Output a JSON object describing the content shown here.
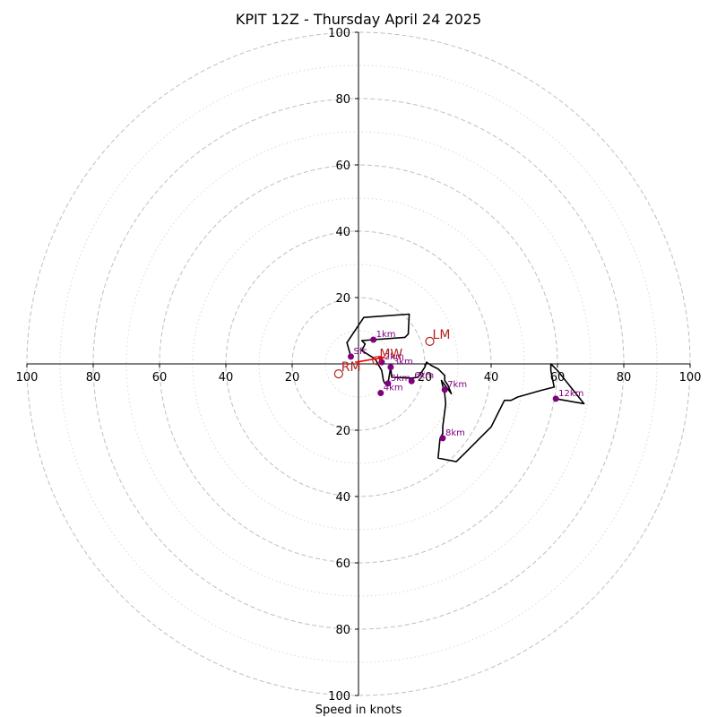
{
  "chart_data": {
    "type": "hodograph",
    "title": "KPIT 12Z - Thursday April 24 2025",
    "xlabel": "Speed in knots",
    "ylabel": "",
    "xlim": [
      -100,
      100
    ],
    "ylim": [
      -100,
      100
    ],
    "x_ticks": [
      {
        "value": -100,
        "label": "100"
      },
      {
        "value": -80,
        "label": "80"
      },
      {
        "value": -60,
        "label": "60"
      },
      {
        "value": -40,
        "label": "40"
      },
      {
        "value": -20,
        "label": "20"
      },
      {
        "value": 20,
        "label": "20"
      },
      {
        "value": 40,
        "label": "40"
      },
      {
        "value": 60,
        "label": "60"
      },
      {
        "value": 80,
        "label": "80"
      },
      {
        "value": 100,
        "label": "100"
      }
    ],
    "y_ticks": [
      {
        "value": 100,
        "label": "100"
      },
      {
        "value": 80,
        "label": "80"
      },
      {
        "value": 60,
        "label": "60"
      },
      {
        "value": 40,
        "label": "40"
      },
      {
        "value": 20,
        "label": "20"
      },
      {
        "value": -20,
        "label": "20"
      },
      {
        "value": -40,
        "label": "40"
      },
      {
        "value": -60,
        "label": "60"
      },
      {
        "value": -80,
        "label": "80"
      },
      {
        "value": -100,
        "label": "100"
      }
    ],
    "rings_major": [
      20,
      40,
      60,
      80,
      100
    ],
    "rings_minor": [
      10,
      30,
      50,
      70,
      90
    ],
    "trace": [
      [
        -2.3,
        2.2
      ],
      [
        -3.5,
        6.4
      ],
      [
        1.6,
        14.0
      ],
      [
        15.3,
        15.0
      ],
      [
        15.0,
        9.0
      ],
      [
        14.0,
        8.0
      ],
      [
        4.5,
        7.3
      ],
      [
        1.0,
        7.0
      ],
      [
        2.0,
        6.0
      ],
      [
        1.0,
        4.0
      ],
      [
        5.0,
        1.5
      ],
      [
        7.0,
        -2.0
      ],
      [
        7.5,
        -5.0
      ],
      [
        8.0,
        -6.0
      ],
      [
        8.9,
        -5.9
      ],
      [
        9.7,
        -1.0
      ],
      [
        10.0,
        -4.0
      ],
      [
        16.0,
        -4.3
      ],
      [
        18.0,
        -4.0
      ],
      [
        20.0,
        -1.0
      ],
      [
        20.5,
        0.5
      ],
      [
        22.0,
        -0.5
      ],
      [
        24.0,
        -1.5
      ],
      [
        26.0,
        -3.5
      ],
      [
        26.0,
        -5.0
      ],
      [
        27.0,
        -6.5
      ],
      [
        28.0,
        -9.0
      ],
      [
        25.0,
        -5.0
      ],
      [
        26.0,
        -9.0
      ],
      [
        26.3,
        -12.0
      ],
      [
        25.4,
        -19.0
      ],
      [
        25.4,
        -21.0
      ],
      [
        24.6,
        -22.4
      ],
      [
        24.0,
        -28.4
      ],
      [
        29.5,
        -29.5
      ],
      [
        32.0,
        -27.0
      ],
      [
        36.0,
        -23.0
      ],
      [
        40.0,
        -19.0
      ],
      [
        42.0,
        -15.0
      ],
      [
        44.0,
        -11.0
      ],
      [
        46.0,
        -11.0
      ],
      [
        48.0,
        -10.0
      ],
      [
        55.0,
        -8.0
      ],
      [
        59.0,
        -7.0
      ],
      [
        58.0,
        -2.0
      ],
      [
        58.0,
        0.0
      ],
      [
        59.0,
        -1.0
      ],
      [
        60.0,
        -2.0
      ],
      [
        68.0,
        -12.0
      ],
      [
        59.5,
        -10.5
      ]
    ],
    "levels": [
      {
        "label": "Sfc",
        "u": -2.3,
        "v": 2.2
      },
      {
        "label": "1km",
        "u": 4.5,
        "v": 7.3
      },
      {
        "label": "2km",
        "u": 7.0,
        "v": 0.5
      },
      {
        "label": "3km",
        "u": 9.7,
        "v": -1.0
      },
      {
        "label": "4km",
        "u": 6.7,
        "v": -8.8
      },
      {
        "label": "5km",
        "u": 8.9,
        "v": -5.9
      },
      {
        "label": "6km",
        "u": 16.0,
        "v": -5.2
      },
      {
        "label": "7km",
        "u": 26.0,
        "v": -7.8
      },
      {
        "label": "8km",
        "u": 25.4,
        "v": -22.4
      },
      {
        "label": "12km",
        "u": 59.5,
        "v": -10.5
      }
    ],
    "shear_vector": {
      "from": [
        -1.0,
        0.5
      ],
      "to": [
        8.0,
        2.0
      ],
      "color": "#ff0000"
    },
    "markers": [
      {
        "label": "LM",
        "u": 21.5,
        "v": 6.8
      },
      {
        "label": "MW",
        "u": 5.5,
        "v": 1.0
      },
      {
        "label": "RM",
        "u": -6.0,
        "v": -3.0
      }
    ],
    "colors": {
      "trace": "#000000",
      "levels": "#800080",
      "markers": "#b22222",
      "rings": "#bfbfbf",
      "axes": "#000000"
    },
    "grid": true
  }
}
